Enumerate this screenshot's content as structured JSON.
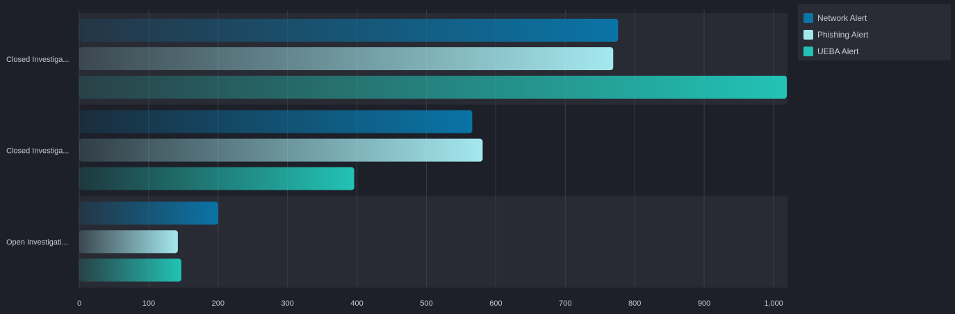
{
  "chart_data": {
    "type": "bar",
    "orientation": "horizontal",
    "categories": [
      "Closed Investiga...",
      "Closed Investiga...",
      "Open Investigati..."
    ],
    "series": [
      {
        "name": "Network Alert",
        "values": [
          776,
          566,
          200
        ],
        "color": "#0a74a6"
      },
      {
        "name": "Phishing Alert",
        "values": [
          769,
          581,
          142
        ],
        "color": "#a4e8ee"
      },
      {
        "name": "UEBA Alert",
        "values": [
          1019,
          396,
          147
        ],
        "color": "#22c3b5"
      }
    ],
    "x_ticks": [
      "0",
      "100",
      "200",
      "300",
      "400",
      "500",
      "600",
      "700",
      "800",
      "900",
      "1,000"
    ],
    "xlim": [
      0,
      1020
    ],
    "grid": true,
    "legend_position": "top-right"
  },
  "colors": {
    "background": "#1d2029",
    "band": "#292b34",
    "gridline": "#3a3d47",
    "axis_text": "#c7cad2"
  }
}
